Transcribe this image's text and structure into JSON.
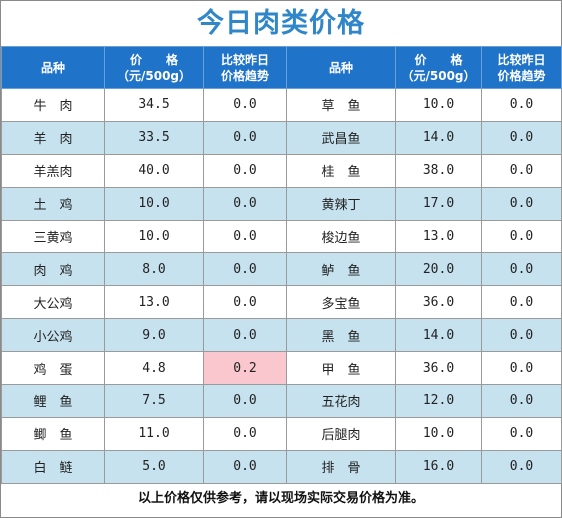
{
  "title": "今日肉类价格",
  "headers": [
    "品种",
    "价　　格\n（元/500g）",
    "比较昨日\n价格趋势",
    "品种",
    "价　　格\n（元/500g）",
    "比较昨日\n价格趋势"
  ],
  "rows": [
    {
      "name_left": "牛　肉",
      "price_left": "34.5",
      "trend_left": "0.0",
      "name_right": "草　鱼",
      "price_right": "10.0",
      "trend_right": "0.0"
    },
    {
      "name_left": "羊　肉",
      "price_left": "33.5",
      "trend_left": "0.0",
      "name_right": "武昌鱼",
      "price_right": "14.0",
      "trend_right": "0.0"
    },
    {
      "name_left": "羊羔肉",
      "price_left": "40.0",
      "trend_left": "0.0",
      "name_right": "桂　鱼",
      "price_right": "38.0",
      "trend_right": "0.0"
    },
    {
      "name_left": "土　鸡",
      "price_left": "10.0",
      "trend_left": "0.0",
      "name_right": "黄辣丁",
      "price_right": "17.0",
      "trend_right": "0.0"
    },
    {
      "name_left": "三黄鸡",
      "price_left": "10.0",
      "trend_left": "0.0",
      "name_right": "梭边鱼",
      "price_right": "13.0",
      "trend_right": "0.0"
    },
    {
      "name_left": "肉　鸡",
      "price_left": "8.0",
      "trend_left": "0.0",
      "name_right": "鲈　鱼",
      "price_right": "20.0",
      "trend_right": "0.0"
    },
    {
      "name_left": "大公鸡",
      "price_left": "13.0",
      "trend_left": "0.0",
      "name_right": "多宝鱼",
      "price_right": "36.0",
      "trend_right": "0.0"
    },
    {
      "name_left": "小公鸡",
      "price_left": "9.0",
      "trend_left": "0.0",
      "name_right": "黑　鱼",
      "price_right": "14.0",
      "trend_right": "0.0"
    },
    {
      "name_left": "鸡　蛋",
      "price_left": "4.8",
      "trend_left": "0.2",
      "name_right": "甲　鱼",
      "price_right": "36.0",
      "trend_right": "0.0"
    },
    {
      "name_left": "鲤　鱼",
      "price_left": "7.5",
      "trend_left": "0.0",
      "name_right": "五花肉",
      "price_right": "12.0",
      "trend_right": "0.0"
    },
    {
      "name_left": "鲫　鱼",
      "price_left": "11.0",
      "trend_left": "0.0",
      "name_right": "后腿肉",
      "price_right": "10.0",
      "trend_right": "0.0"
    },
    {
      "name_left": "白　鲢",
      "price_left": "5.0",
      "trend_left": "0.0",
      "name_right": "排　骨",
      "price_right": "16.0",
      "trend_right": "0.0"
    }
  ],
  "highlight": {
    "row": 8,
    "column": "trend_left",
    "color": "#f9c7cd"
  },
  "colors": {
    "title": "#2f86c8",
    "header_bg": "#1f73c9",
    "stripe": "#c6e2ef"
  },
  "footer": "以上价格仅供参考，请以现场实际交易价格为准。"
}
